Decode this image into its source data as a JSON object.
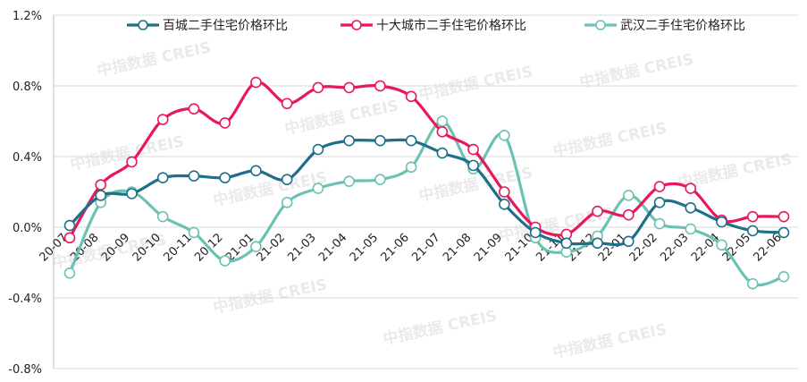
{
  "chart_data": {
    "type": "line",
    "title": "",
    "xlabel": "",
    "ylabel": "",
    "ylim": [
      -0.8,
      1.2
    ],
    "ytick_values": [
      -0.8,
      -0.4,
      0.0,
      0.4,
      0.8,
      1.2
    ],
    "ytick_labels": [
      "-0.8%",
      "-0.4%",
      "0.0%",
      "0.4%",
      "0.8%",
      "1.2%"
    ],
    "x_labels": [
      "20-07",
      "20-08",
      "20-09",
      "20-10",
      "20-11",
      "20-12",
      "21-01",
      "21-02",
      "21-03",
      "21-04",
      "21-05",
      "21-06",
      "21-07",
      "21-08",
      "21-09",
      "21-10",
      "21-11",
      "21-12",
      "22-01",
      "22-02",
      "22-03",
      "22-04",
      "22-05",
      "22-06"
    ],
    "series": [
      {
        "name": "百城二手住宅价格环比",
        "color": "#1f6f8b",
        "values": [
          0.01,
          0.18,
          0.19,
          0.28,
          0.29,
          0.28,
          0.32,
          0.27,
          0.44,
          0.49,
          0.49,
          0.49,
          0.42,
          0.35,
          0.13,
          -0.03,
          -0.09,
          -0.09,
          -0.08,
          0.14,
          0.11,
          0.03,
          -0.02,
          -0.03
        ]
      },
      {
        "name": "十大城市二手住宅价格环比",
        "color": "#e8185c",
        "values": [
          -0.06,
          0.24,
          0.37,
          0.61,
          0.67,
          0.59,
          0.82,
          0.7,
          0.79,
          0.79,
          0.8,
          0.74,
          0.54,
          0.44,
          0.2,
          0.0,
          -0.04,
          0.09,
          0.07,
          0.23,
          0.22,
          0.04,
          0.06,
          0.06
        ]
      },
      {
        "name": "武汉二手住宅价格环比",
        "color": "#6cc2b2",
        "values": [
          -0.26,
          0.14,
          0.2,
          0.06,
          -0.03,
          -0.19,
          -0.11,
          0.14,
          0.22,
          0.26,
          0.27,
          0.34,
          0.6,
          0.33,
          0.52,
          -0.06,
          -0.14,
          -0.05,
          0.18,
          0.02,
          -0.01,
          -0.1,
          -0.32,
          -0.28
        ]
      }
    ],
    "legend_position": "top",
    "watermark": "中指数据 CREIS"
  }
}
